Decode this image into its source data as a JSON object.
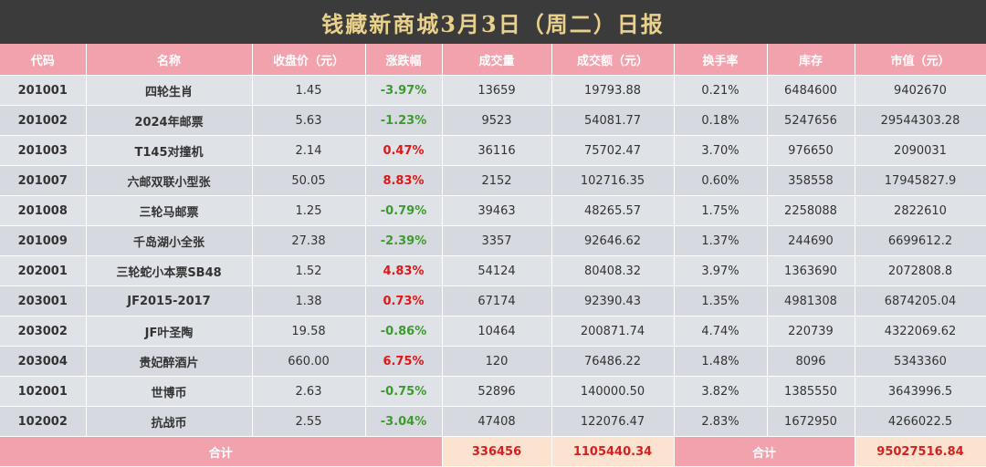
{
  "title": "钱藏新商城3月3日（周二）日报",
  "headers": [
    "代码",
    "名称",
    "收盘价（元）",
    "涨跌幅",
    "成交量",
    "成交额（元）",
    "换手率",
    "库存",
    "市值（元）"
  ],
  "rows": [
    {
      "code": "201001",
      "name": "四轮生肖",
      "close": "1.45",
      "change": "-3.97%",
      "volume": "13659",
      "turnover": "19793.88",
      "rate": "0.21%",
      "stock": "6484600",
      "market_value": "9402670"
    },
    {
      "code": "201002",
      "name": "2024年邮票",
      "close": "5.63",
      "change": "-1.23%",
      "volume": "9523",
      "turnover": "54081.77",
      "rate": "0.18%",
      "stock": "5247656",
      "market_value": "29544303.28"
    },
    {
      "code": "201003",
      "name": "T145对撞机",
      "close": "2.14",
      "change": "0.47%",
      "volume": "36116",
      "turnover": "75702.47",
      "rate": "3.70%",
      "stock": "976650",
      "market_value": "2090031"
    },
    {
      "code": "201007",
      "name": "六邮双联小型张",
      "close": "50.05",
      "change": "8.83%",
      "volume": "2152",
      "turnover": "102716.35",
      "rate": "0.60%",
      "stock": "358558",
      "market_value": "17945827.9"
    },
    {
      "code": "201008",
      "name": "三轮马邮票",
      "close": "1.25",
      "change": "-0.79%",
      "volume": "39463",
      "turnover": "48265.57",
      "rate": "1.75%",
      "stock": "2258088",
      "market_value": "2822610"
    },
    {
      "code": "201009",
      "name": "千岛湖小全张",
      "close": "27.38",
      "change": "-2.39%",
      "volume": "3357",
      "turnover": "92646.62",
      "rate": "1.37%",
      "stock": "244690",
      "market_value": "6699612.2"
    },
    {
      "code": "202001",
      "name": "三轮蛇小本票SB48",
      "close": "1.52",
      "change": "4.83%",
      "volume": "54124",
      "turnover": "80408.32",
      "rate": "3.97%",
      "stock": "1363690",
      "market_value": "2072808.8"
    },
    {
      "code": "203001",
      "name": "JF2015-2017",
      "close": "1.38",
      "change": "0.73%",
      "volume": "67174",
      "turnover": "92390.43",
      "rate": "1.35%",
      "stock": "4981308",
      "market_value": "6874205.04"
    },
    {
      "code": "203002",
      "name": "JF叶圣陶",
      "close": "19.58",
      "change": "-0.86%",
      "volume": "10464",
      "turnover": "200871.74",
      "rate": "4.74%",
      "stock": "220739",
      "market_value": "4322069.62"
    },
    {
      "code": "203004",
      "name": "贵妃醉酒片",
      "close": "660.00",
      "change": "6.75%",
      "volume": "120",
      "turnover": "76486.22",
      "rate": "1.48%",
      "stock": "8096",
      "market_value": "5343360"
    },
    {
      "code": "102001",
      "name": "世博币",
      "close": "2.63",
      "change": "-0.75%",
      "volume": "52896",
      "turnover": "140000.50",
      "rate": "3.82%",
      "stock": "1385550",
      "market_value": "3643996.5"
    },
    {
      "code": "102002",
      "name": "抗战币",
      "close": "2.55",
      "change": "-3.04%",
      "volume": "47408",
      "turnover": "122076.47",
      "rate": "2.83%",
      "stock": "1672950",
      "market_value": "4266022.5"
    }
  ],
  "total": {
    "label": "合计",
    "volume": "336456",
    "turnover": "1105440.34",
    "label2": "合计",
    "market_value": "95027516.84"
  },
  "colors": {
    "banner": "#3b3b3b",
    "title": "#e9d18c",
    "header": "#f2a2ac",
    "up": "#e01818",
    "down": "#3e9a2e",
    "total_value_bg": "#fbe3d0"
  }
}
